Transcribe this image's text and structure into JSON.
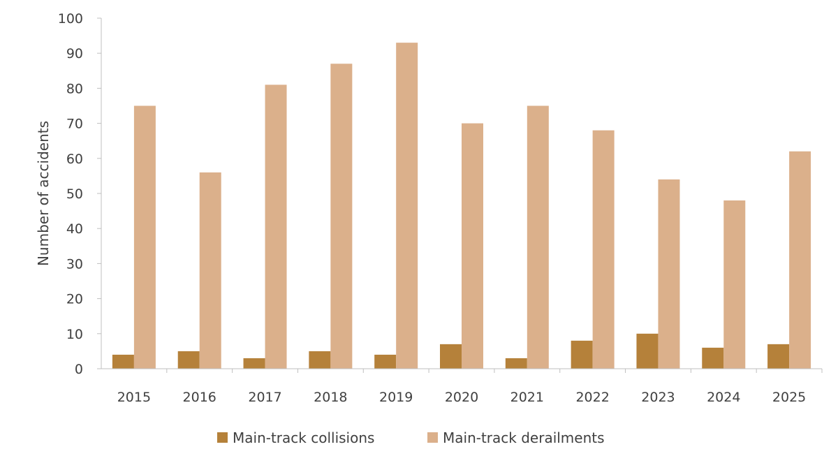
{
  "chart_data": {
    "type": "bar",
    "title": "",
    "xlabel": "",
    "ylabel": "Number of accidents",
    "ylim": [
      0,
      100
    ],
    "yticks": [
      0,
      10,
      20,
      30,
      40,
      50,
      60,
      70,
      80,
      90,
      100
    ],
    "categories": [
      "2015",
      "2016",
      "2017",
      "2018",
      "2019",
      "2020",
      "2021",
      "2022",
      "2023",
      "2024",
      "2025"
    ],
    "series": [
      {
        "name": "Main-track collisions",
        "color": "#b5813a",
        "values": [
          4,
          5,
          3,
          5,
          4,
          7,
          3,
          8,
          10,
          6,
          7
        ]
      },
      {
        "name": "Main-track derailments",
        "color": "#dbb08b",
        "values": [
          75,
          56,
          81,
          87,
          93,
          70,
          75,
          68,
          54,
          48,
          62
        ]
      }
    ],
    "grid": false,
    "legend_position": "bottom"
  }
}
